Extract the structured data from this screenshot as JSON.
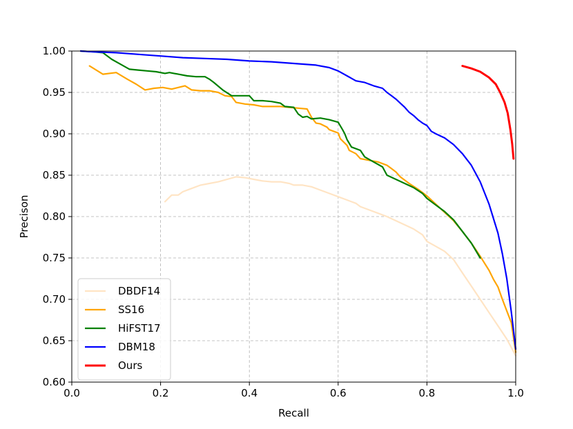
{
  "chart_data": {
    "type": "line",
    "xlabel": "Recall",
    "ylabel": "Precison",
    "xlim": [
      0.0,
      1.0
    ],
    "ylim": [
      0.6,
      1.0
    ],
    "xticks": [
      "0.0",
      "0.2",
      "0.4",
      "0.6",
      "0.8",
      "1.0"
    ],
    "yticks": [
      "0.60",
      "0.65",
      "0.70",
      "0.75",
      "0.80",
      "0.85",
      "0.90",
      "0.95",
      "1.00"
    ],
    "grid": true,
    "legend_position": "lower-left",
    "series": [
      {
        "name": "DBDF14",
        "color": "#FFE4C4",
        "x": [
          0.21,
          0.225,
          0.24,
          0.25,
          0.27,
          0.29,
          0.31,
          0.33,
          0.35,
          0.37,
          0.39,
          0.41,
          0.43,
          0.45,
          0.47,
          0.49,
          0.5,
          0.52,
          0.54,
          0.56,
          0.58,
          0.6,
          0.62,
          0.64,
          0.65,
          0.67,
          0.69,
          0.71,
          0.73,
          0.75,
          0.77,
          0.79,
          0.8,
          0.82,
          0.84,
          0.86,
          0.88,
          0.9,
          0.92,
          0.94,
          0.96,
          0.98,
          1.0
        ],
        "y": [
          0.818,
          0.826,
          0.826,
          0.83,
          0.834,
          0.838,
          0.84,
          0.842,
          0.845,
          0.848,
          0.847,
          0.845,
          0.843,
          0.842,
          0.842,
          0.84,
          0.838,
          0.838,
          0.836,
          0.832,
          0.828,
          0.824,
          0.82,
          0.816,
          0.812,
          0.808,
          0.804,
          0.8,
          0.795,
          0.79,
          0.785,
          0.778,
          0.77,
          0.764,
          0.758,
          0.748,
          0.732,
          0.716,
          0.7,
          0.684,
          0.668,
          0.652,
          0.632
        ]
      },
      {
        "name": "SS16",
        "color": "#FFA500",
        "x": [
          0.04,
          0.07,
          0.1,
          0.125,
          0.145,
          0.165,
          0.185,
          0.205,
          0.225,
          0.24,
          0.255,
          0.27,
          0.29,
          0.31,
          0.33,
          0.345,
          0.36,
          0.37,
          0.39,
          0.41,
          0.43,
          0.45,
          0.47,
          0.49,
          0.51,
          0.53,
          0.54,
          0.55,
          0.56,
          0.575,
          0.58,
          0.6,
          0.605,
          0.62,
          0.625,
          0.64,
          0.65,
          0.67,
          0.69,
          0.71,
          0.72,
          0.73,
          0.74,
          0.76,
          0.78,
          0.8,
          0.82,
          0.84,
          0.86,
          0.88,
          0.9,
          0.92,
          0.94,
          0.95,
          0.96,
          0.97,
          0.98,
          0.99,
          1.0
        ],
        "y": [
          0.982,
          0.972,
          0.974,
          0.966,
          0.96,
          0.953,
          0.955,
          0.956,
          0.954,
          0.956,
          0.958,
          0.953,
          0.952,
          0.952,
          0.95,
          0.946,
          0.945,
          0.938,
          0.936,
          0.935,
          0.933,
          0.933,
          0.933,
          0.932,
          0.931,
          0.93,
          0.92,
          0.913,
          0.912,
          0.908,
          0.905,
          0.901,
          0.894,
          0.886,
          0.88,
          0.876,
          0.87,
          0.868,
          0.866,
          0.862,
          0.858,
          0.854,
          0.848,
          0.84,
          0.833,
          0.825,
          0.815,
          0.805,
          0.795,
          0.782,
          0.768,
          0.752,
          0.735,
          0.724,
          0.715,
          0.7,
          0.686,
          0.672,
          0.636
        ]
      },
      {
        "name": "HiFST17",
        "color": "#008000",
        "x": [
          0.02,
          0.05,
          0.07,
          0.09,
          0.11,
          0.13,
          0.15,
          0.17,
          0.19,
          0.21,
          0.22,
          0.23,
          0.24,
          0.26,
          0.28,
          0.3,
          0.31,
          0.32,
          0.34,
          0.36,
          0.38,
          0.4,
          0.41,
          0.43,
          0.45,
          0.47,
          0.48,
          0.5,
          0.51,
          0.52,
          0.53,
          0.54,
          0.56,
          0.58,
          0.6,
          0.61,
          0.615,
          0.62,
          0.63,
          0.65,
          0.66,
          0.68,
          0.7,
          0.71,
          0.73,
          0.75,
          0.77,
          0.79,
          0.8,
          0.82,
          0.84,
          0.86,
          0.88,
          0.9,
          0.92
        ],
        "y": [
          1.0,
          0.999,
          0.998,
          0.99,
          0.984,
          0.978,
          0.977,
          0.976,
          0.975,
          0.973,
          0.974,
          0.973,
          0.972,
          0.97,
          0.969,
          0.969,
          0.966,
          0.962,
          0.953,
          0.946,
          0.946,
          0.946,
          0.94,
          0.94,
          0.939,
          0.937,
          0.933,
          0.932,
          0.924,
          0.92,
          0.921,
          0.918,
          0.919,
          0.917,
          0.914,
          0.905,
          0.9,
          0.893,
          0.884,
          0.88,
          0.872,
          0.866,
          0.86,
          0.85,
          0.845,
          0.84,
          0.835,
          0.828,
          0.822,
          0.814,
          0.806,
          0.796,
          0.782,
          0.768,
          0.75
        ]
      },
      {
        "name": "DBM18",
        "color": "#0000FF",
        "x": [
          0.02,
          0.05,
          0.1,
          0.15,
          0.2,
          0.25,
          0.3,
          0.35,
          0.4,
          0.45,
          0.5,
          0.55,
          0.58,
          0.6,
          0.62,
          0.64,
          0.66,
          0.68,
          0.7,
          0.71,
          0.72,
          0.73,
          0.74,
          0.75,
          0.76,
          0.77,
          0.78,
          0.79,
          0.8,
          0.81,
          0.82,
          0.84,
          0.86,
          0.88,
          0.9,
          0.92,
          0.94,
          0.96,
          0.97,
          0.98,
          0.99,
          1.0
        ],
        "y": [
          1.0,
          0.999,
          0.998,
          0.996,
          0.994,
          0.992,
          0.991,
          0.99,
          0.988,
          0.987,
          0.985,
          0.983,
          0.98,
          0.976,
          0.97,
          0.964,
          0.962,
          0.958,
          0.955,
          0.95,
          0.946,
          0.942,
          0.937,
          0.932,
          0.926,
          0.922,
          0.917,
          0.913,
          0.91,
          0.903,
          0.9,
          0.895,
          0.887,
          0.876,
          0.862,
          0.842,
          0.815,
          0.78,
          0.755,
          0.725,
          0.685,
          0.64
        ]
      },
      {
        "name": "Ours",
        "color": "#FF0000",
        "x": [
          0.88,
          0.9,
          0.92,
          0.94,
          0.955,
          0.965,
          0.975,
          0.982,
          0.988,
          0.992,
          0.995
        ],
        "y": [
          0.982,
          0.979,
          0.975,
          0.968,
          0.96,
          0.95,
          0.938,
          0.925,
          0.905,
          0.888,
          0.87
        ]
      }
    ]
  }
}
